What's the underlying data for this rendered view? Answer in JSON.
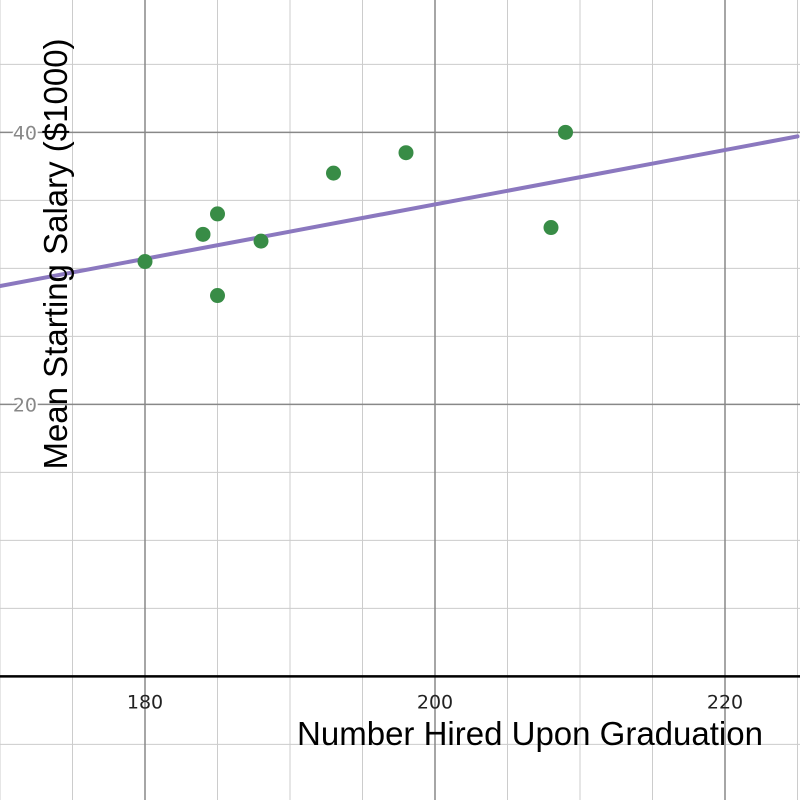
{
  "chart_data": {
    "type": "scatter",
    "xlabel": "Number Hired Upon Graduation",
    "ylabel": "Mean Starting Salary ($1000)",
    "xlim": [
      170,
      225
    ],
    "ylim": [
      -10,
      49
    ],
    "x_ticks": [
      180,
      200,
      220
    ],
    "x_tick_labels": [
      "180",
      "200",
      "220"
    ],
    "y_ticks": [
      20,
      40
    ],
    "y_tick_labels": [
      "20",
      "40"
    ],
    "grid": true,
    "points": [
      {
        "x": 180,
        "y": 30.5
      },
      {
        "x": 184,
        "y": 32.5
      },
      {
        "x": 185,
        "y": 34.0
      },
      {
        "x": 185,
        "y": 28.0
      },
      {
        "x": 188,
        "y": 32.0
      },
      {
        "x": 193,
        "y": 37.0
      },
      {
        "x": 198,
        "y": 38.5
      },
      {
        "x": 208,
        "y": 33.0
      },
      {
        "x": 209,
        "y": 40.0
      }
    ],
    "trend_line": {
      "slope": 0.2,
      "intercept": -5.3
    },
    "colors": {
      "points": "#388c46",
      "line": "#8b78bf",
      "grid_major": "#888888",
      "grid_minor": "#cccccc",
      "axis": "#000000"
    }
  }
}
